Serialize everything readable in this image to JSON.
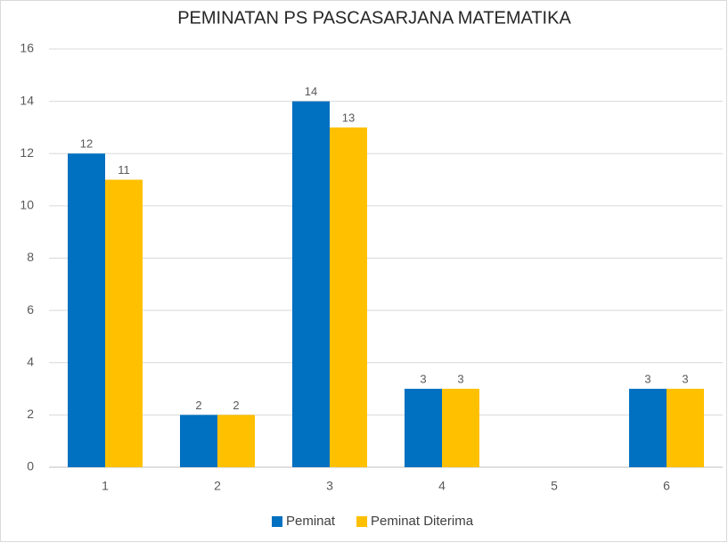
{
  "chart_data": {
    "type": "bar",
    "title": "PEMINATAN PS PASCASARJANA MATEMATIKA",
    "categories": [
      "1",
      "2",
      "3",
      "4",
      "5",
      "6"
    ],
    "series": [
      {
        "name": "Peminat",
        "color": "#0070c0",
        "values": [
          12,
          2,
          14,
          3,
          null,
          3
        ]
      },
      {
        "name": "Peminat Diterima",
        "color": "#ffc000",
        "values": [
          11,
          2,
          13,
          3,
          null,
          3
        ]
      }
    ],
    "ylim": [
      0,
      16
    ],
    "yticks": [
      0,
      2,
      4,
      6,
      8,
      10,
      12,
      14,
      16
    ],
    "grid": true,
    "legend": "bottom"
  }
}
